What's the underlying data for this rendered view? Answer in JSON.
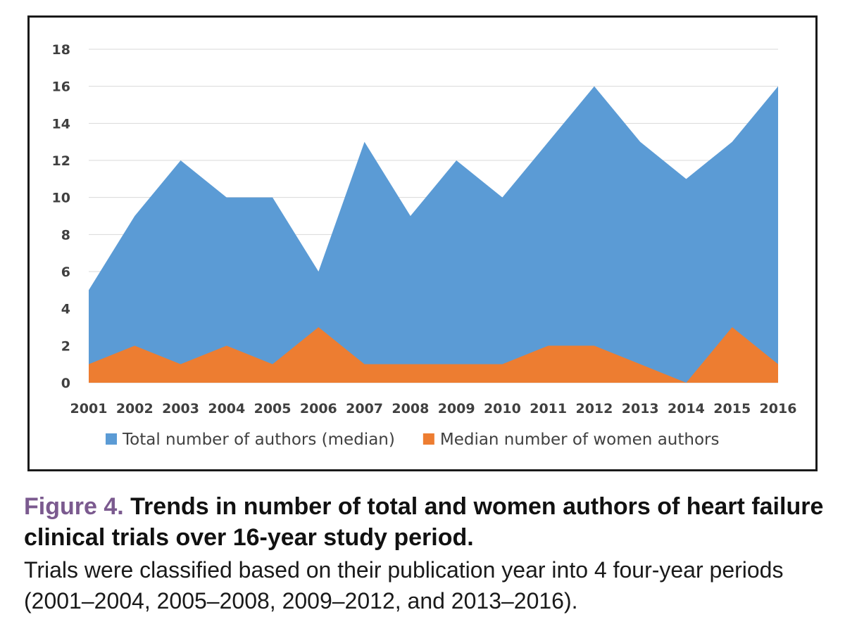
{
  "chart_data": {
    "type": "area",
    "x": [
      "2001",
      "2002",
      "2003",
      "2004",
      "2005",
      "2006",
      "2007",
      "2008",
      "2009",
      "2010",
      "2011",
      "2012",
      "2013",
      "2014",
      "2015",
      "2016"
    ],
    "series": [
      {
        "name": "Total number of authors (median)",
        "color": "#5b9bd5",
        "values": [
          5,
          9,
          12,
          10,
          10,
          6,
          13,
          9,
          12,
          10,
          13,
          16,
          13,
          11,
          13,
          16
        ]
      },
      {
        "name": "Median number of women authors",
        "color": "#ed7d31",
        "values": [
          1,
          2,
          1,
          2,
          1,
          3,
          1,
          1,
          1,
          1,
          2,
          2,
          1,
          0,
          3,
          1
        ]
      }
    ],
    "yticks": [
      "0",
      "2",
      "4",
      "6",
      "8",
      "10",
      "12",
      "14",
      "16",
      "18"
    ],
    "ylim": [
      0,
      18
    ],
    "grid": true,
    "legend_position": "bottom"
  },
  "caption": {
    "figure_label": "Figure 4.",
    "title": "Trends in number of total and women authors of heart failure clinical trials over 16-year study period.",
    "body": "Trials were classified based on their publication year into 4 four-year periods (2001–2004, 2005–2008, 2009–2012, and 2013–2016)."
  }
}
